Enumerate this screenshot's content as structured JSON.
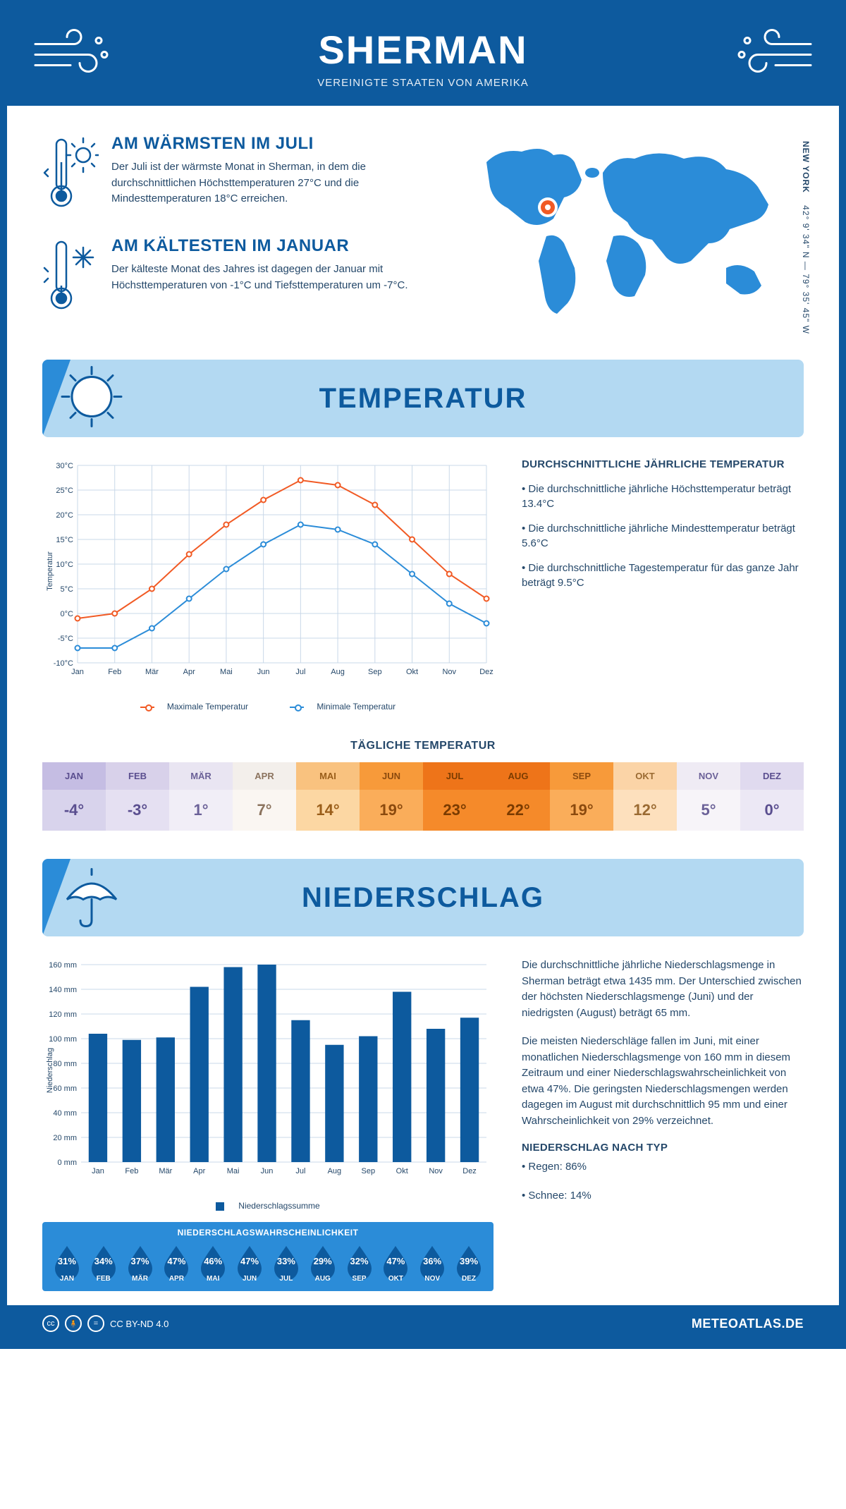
{
  "header": {
    "title": "SHERMAN",
    "subtitle": "VEREINIGTE STAATEN VON AMERIKA"
  },
  "coords": {
    "lat": "42° 9' 34\" N",
    "lon": "79° 35' 45\" W",
    "state": "NEW YORK"
  },
  "warm": {
    "title": "AM WÄRMSTEN IM JULI",
    "text": "Der Juli ist der wärmste Monat in Sherman, in dem die durchschnittlichen Höchsttemperaturen 27°C und die Mindesttemperaturen 18°C erreichen."
  },
  "cold": {
    "title": "AM KÄLTESTEN IM JANUAR",
    "text": "Der kälteste Monat des Jahres ist dagegen der Januar mit Höchsttemperaturen von -1°C und Tiefsttemperaturen um -7°C."
  },
  "map": {
    "marker_x": 0.255,
    "marker_y": 0.4
  },
  "temperature_section": {
    "banner": "TEMPERATUR",
    "legend_max": "Maximale Temperatur",
    "legend_min": "Minimale Temperatur",
    "side_title": "DURCHSCHNITTLICHE JÄHRLICHE TEMPERATUR",
    "side_points": [
      "• Die durchschnittliche jährliche Höchsttemperatur beträgt 13.4°C",
      "• Die durchschnittliche jährliche Mindesttemperatur beträgt 5.6°C",
      "• Die durchschnittliche Tagestemperatur für das ganze Jahr beträgt 9.5°C"
    ],
    "y_label": "Temperatur",
    "chart": {
      "months": [
        "Jan",
        "Feb",
        "Mär",
        "Apr",
        "Mai",
        "Jun",
        "Jul",
        "Aug",
        "Sep",
        "Okt",
        "Nov",
        "Dez"
      ],
      "max": [
        -1,
        0,
        5,
        12,
        18,
        23,
        27,
        26,
        22,
        15,
        8,
        3
      ],
      "min": [
        -7,
        -7,
        -3,
        3,
        9,
        14,
        18,
        17,
        14,
        8,
        2,
        -2
      ],
      "ylim": [
        -10,
        30
      ],
      "ytick_step": 5,
      "max_color": "#f15a24",
      "min_color": "#2b8cd8",
      "grid_color": "#c9d8e8"
    }
  },
  "daily": {
    "title": "TÄGLICHE TEMPERATUR",
    "months": [
      "JAN",
      "FEB",
      "MÄR",
      "APR",
      "MAI",
      "JUN",
      "JUL",
      "AUG",
      "SEP",
      "OKT",
      "NOV",
      "DEZ"
    ],
    "values": [
      "-4°",
      "-3°",
      "1°",
      "7°",
      "14°",
      "19°",
      "23°",
      "22°",
      "19°",
      "12°",
      "5°",
      "0°"
    ],
    "cell_bg": [
      "#d8d3ec",
      "#e5e0f2",
      "#f1eef7",
      "#faf6f2",
      "#fcd7a3",
      "#faad5a",
      "#f58a2a",
      "#f58a2a",
      "#faad5a",
      "#fde0bd",
      "#f7f4f9",
      "#ece8f5"
    ],
    "head_bg": [
      "#c5bde3",
      "#d8d1ea",
      "#e9e5f2",
      "#f3efeb",
      "#f9c27f",
      "#f79a3a",
      "#ee7419",
      "#ee7419",
      "#f79a3a",
      "#fbd4a7",
      "#efebf4",
      "#e0daef"
    ],
    "text_color": [
      "#5a4e8f",
      "#5a4e8f",
      "#6b6198",
      "#8b735e",
      "#9a5e1a",
      "#8b4a0e",
      "#7a3b00",
      "#7a3b00",
      "#8b4a0e",
      "#9a6a32",
      "#6b6198",
      "#5a4e8f"
    ]
  },
  "precip_section": {
    "banner": "NIEDERSCHLAG",
    "y_label": "Niederschlag",
    "legend": "Niederschlagssumme",
    "chart": {
      "months": [
        "Jan",
        "Feb",
        "Mär",
        "Apr",
        "Mai",
        "Jun",
        "Jul",
        "Aug",
        "Sep",
        "Okt",
        "Nov",
        "Dez"
      ],
      "values": [
        104,
        99,
        101,
        142,
        158,
        160,
        115,
        95,
        102,
        138,
        108,
        117
      ],
      "ylim": [
        0,
        160
      ],
      "ytick_step": 20,
      "bar_color": "#0d5a9e",
      "grid_color": "#c9d8e8",
      "bar_width": 0.55
    },
    "text1": "Die durchschnittliche jährliche Niederschlagsmenge in Sherman beträgt etwa 1435 mm. Der Unterschied zwischen der höchsten Niederschlagsmenge (Juni) und der niedrigsten (August) beträgt 65 mm.",
    "text2": "Die meisten Niederschläge fallen im Juni, mit einer monatlichen Niederschlagsmenge von 160 mm in diesem Zeitraum und einer Niederschlagswahrscheinlichkeit von etwa 47%. Die geringsten Niederschlagsmengen werden dagegen im August mit durchschnittlich 95 mm und einer Wahrscheinlichkeit von 29% verzeichnet.",
    "type_title": "NIEDERSCHLAG NACH TYP",
    "type_points": [
      "• Regen: 86%",
      "• Schnee: 14%"
    ]
  },
  "probability": {
    "title": "NIEDERSCHLAGSWAHRSCHEINLICHKEIT",
    "months": [
      "JAN",
      "FEB",
      "MÄR",
      "APR",
      "MAI",
      "JUN",
      "JUL",
      "AUG",
      "SEP",
      "OKT",
      "NOV",
      "DEZ"
    ],
    "values": [
      "31%",
      "34%",
      "37%",
      "47%",
      "46%",
      "47%",
      "33%",
      "29%",
      "32%",
      "47%",
      "36%",
      "39%"
    ],
    "drop_color": "#0d5a9e"
  },
  "footer": {
    "license": "CC BY-ND 4.0",
    "brand": "METEOATLAS.DE"
  }
}
